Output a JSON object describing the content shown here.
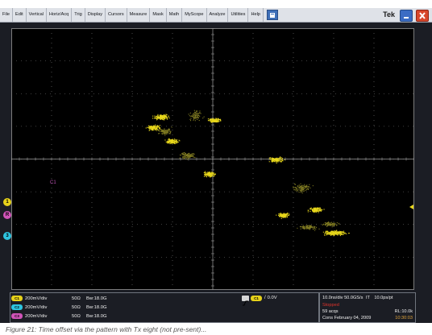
{
  "menu": [
    "File",
    "Edit",
    "Vertical",
    "Horiz/Acq",
    "Trig",
    "Display",
    "Cursors",
    "Measure",
    "Mask",
    "Math",
    "MyScope",
    "Analyze",
    "Utilities",
    "Help"
  ],
  "brand": "Tek",
  "graticule": {
    "cursor_label": "C1",
    "channel_markers": [
      {
        "label": "1",
        "color": "#e6d11a"
      },
      {
        "label": "R",
        "color": "#d054b8"
      },
      {
        "label": "3",
        "color": "#2ec5e0"
      }
    ]
  },
  "channels": [
    {
      "badge": "C1",
      "scale": "200mV/div",
      "impedance": "50Ω",
      "bw": "Bw:18.0G",
      "color": "#e6d11a"
    },
    {
      "badge": "C2",
      "scale": "200mV/div",
      "impedance": "50Ω",
      "bw": "Bw:18.0G",
      "color": "#2ec5e0"
    },
    {
      "badge": "C3",
      "scale": "200mV/div",
      "impedance": "50Ω",
      "bw": "Bw:18.0G",
      "color": "#d054b8"
    }
  ],
  "trigger": {
    "badge": "C1",
    "level": "0.0V"
  },
  "timebase": {
    "scale": "10.0ns/div",
    "rate": "50.0GS/s",
    "mode": "IT",
    "ps_per_pt": "10.0ps/pt",
    "state": "Stopped",
    "acqs": "59 acqs",
    "record_length": "RL:10.0k",
    "date": "Cons  February 04, 2009",
    "time": "10:30:03"
  },
  "caption": "Figure 21: Time offset via the pattern with Tx eight (not pre-sent)...",
  "colors": {
    "trace": "#e8d81c",
    "grid": "#7c7c7c",
    "stopped": "#e0332b"
  }
}
